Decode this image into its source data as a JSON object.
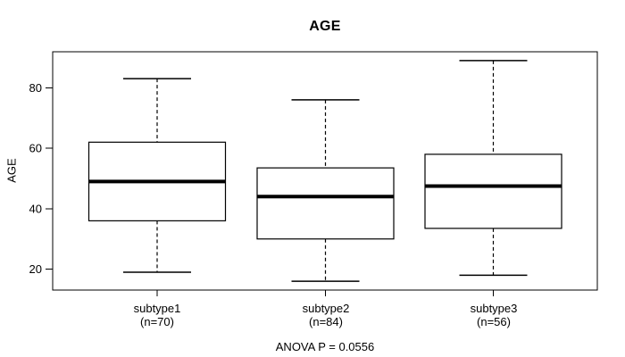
{
  "chart_data": {
    "type": "boxplot",
    "title": "AGE",
    "ylabel": "AGE",
    "annotation": "ANOVA P = 0.0556",
    "ylim": [
      13.1,
      91.9
    ],
    "yticks": [
      20,
      40,
      60,
      80
    ],
    "grid": false,
    "legend": "none",
    "categories": [
      "subtype1",
      "subtype2",
      "subtype3"
    ],
    "groups": [
      {
        "label": "subtype1",
        "sublabel": "(n=70)",
        "n": 70,
        "whisker_low": 19,
        "q1": 36,
        "median": 49,
        "q3": 62,
        "whisker_high": 83
      },
      {
        "label": "subtype2",
        "sublabel": "(n=84)",
        "n": 84,
        "whisker_low": 16,
        "q1": 30,
        "median": 44,
        "q3": 53.5,
        "whisker_high": 76
      },
      {
        "label": "subtype3",
        "sublabel": "(n=56)",
        "n": 56,
        "whisker_low": 18,
        "q1": 33.5,
        "median": 47.5,
        "q3": 58,
        "whisker_high": 89
      }
    ],
    "colors": {
      "line": "#000000",
      "box_fill": "#ffffff",
      "background": "#ffffff",
      "text": "#000000"
    }
  }
}
